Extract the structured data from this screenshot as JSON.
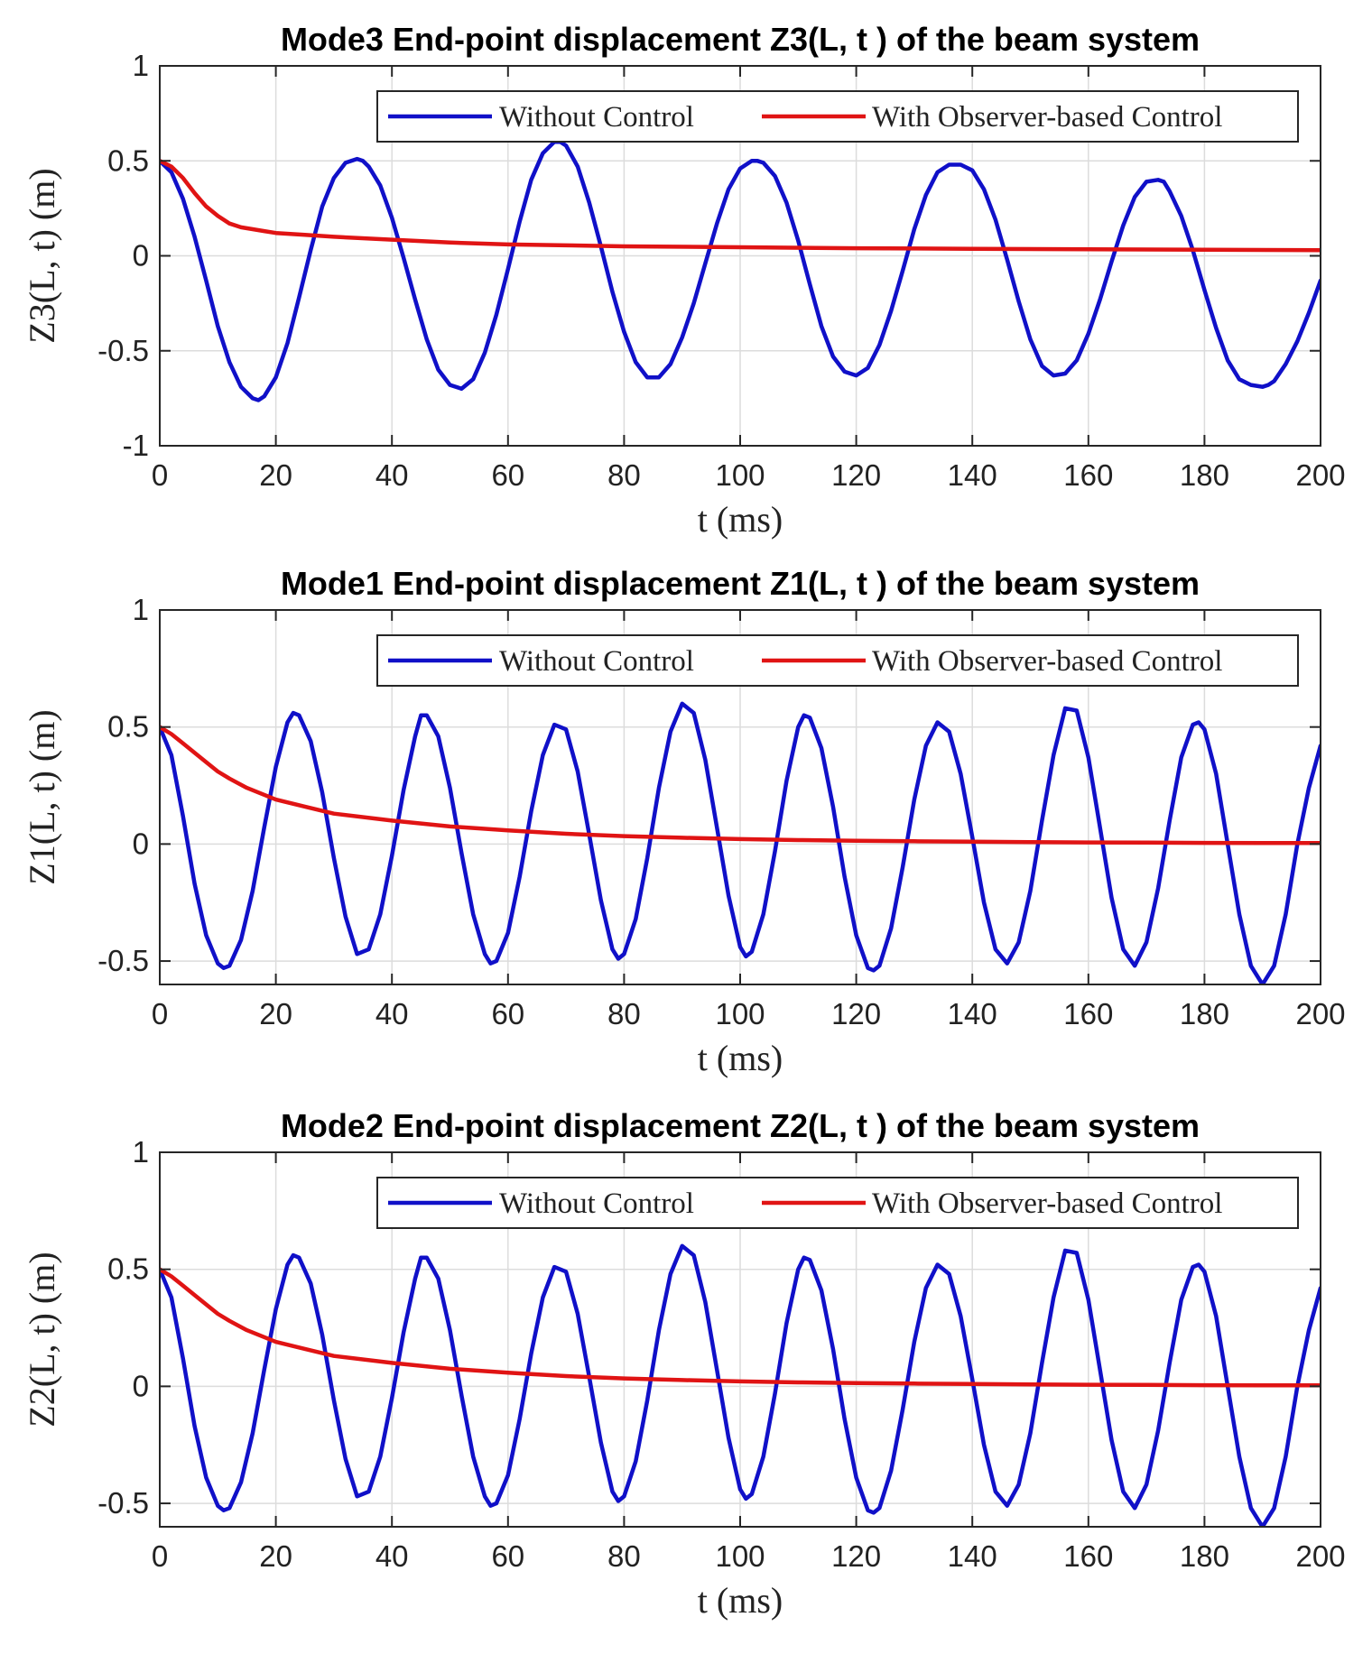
{
  "chart_data": [
    {
      "type": "line",
      "title": "Mode3 End-point displacement Z3(L, t ) of the beam system",
      "xlabel": "t (ms)",
      "ylabel": "Z3(L, t) (m)",
      "xlim": [
        0,
        200
      ],
      "ylim": [
        -1,
        1
      ],
      "xticks": [
        "0",
        "20",
        "40",
        "60",
        "80",
        "100",
        "120",
        "140",
        "160",
        "180",
        "200"
      ],
      "yticks": [
        "-1",
        "-0.5",
        "0",
        "0.5",
        "1"
      ],
      "grid": true,
      "legend_position": "top-right",
      "series": [
        {
          "name": "Without Control",
          "color": "#1010c8",
          "x": [
            0,
            2,
            4,
            6,
            8,
            10,
            12,
            14,
            16,
            17,
            18,
            20,
            22,
            24,
            26,
            28,
            30,
            32,
            34,
            35,
            36,
            38,
            40,
            42,
            44,
            46,
            48,
            50,
            52,
            54,
            56,
            58,
            60,
            62,
            64,
            66,
            68,
            69,
            70,
            72,
            74,
            76,
            78,
            80,
            82,
            84,
            86,
            88,
            90,
            92,
            94,
            96,
            98,
            100,
            102,
            103,
            104,
            106,
            108,
            110,
            112,
            114,
            116,
            118,
            120,
            122,
            124,
            126,
            128,
            130,
            132,
            134,
            136,
            138,
            140,
            142,
            144,
            146,
            148,
            150,
            152,
            154,
            156,
            158,
            160,
            162,
            164,
            166,
            168,
            170,
            172,
            173,
            174,
            176,
            178,
            180,
            182,
            184,
            186,
            188,
            190,
            191,
            192,
            194,
            196,
            198,
            200
          ],
          "y": [
            0.5,
            0.44,
            0.3,
            0.1,
            -0.13,
            -0.37,
            -0.56,
            -0.69,
            -0.75,
            -0.76,
            -0.74,
            -0.64,
            -0.46,
            -0.22,
            0.03,
            0.26,
            0.41,
            0.49,
            0.51,
            0.5,
            0.47,
            0.37,
            0.2,
            -0.01,
            -0.23,
            -0.44,
            -0.6,
            -0.68,
            -0.7,
            -0.65,
            -0.51,
            -0.31,
            -0.07,
            0.18,
            0.4,
            0.54,
            0.6,
            0.6,
            0.58,
            0.47,
            0.28,
            0.05,
            -0.19,
            -0.4,
            -0.56,
            -0.64,
            -0.64,
            -0.57,
            -0.43,
            -0.25,
            -0.04,
            0.17,
            0.35,
            0.46,
            0.5,
            0.5,
            0.49,
            0.42,
            0.28,
            0.08,
            -0.15,
            -0.37,
            -0.53,
            -0.61,
            -0.63,
            -0.59,
            -0.47,
            -0.29,
            -0.08,
            0.14,
            0.32,
            0.44,
            0.48,
            0.48,
            0.45,
            0.35,
            0.19,
            -0.02,
            -0.24,
            -0.44,
            -0.58,
            -0.63,
            -0.62,
            -0.55,
            -0.41,
            -0.23,
            -0.03,
            0.16,
            0.31,
            0.39,
            0.4,
            0.39,
            0.34,
            0.21,
            0.03,
            -0.18,
            -0.38,
            -0.55,
            -0.65,
            -0.68,
            -0.69,
            -0.68,
            -0.66,
            -0.57,
            -0.45,
            -0.3,
            -0.13
          ]
        },
        {
          "name": "With Observer-based Control",
          "color": "#e01414",
          "x": [
            0,
            2,
            4,
            6,
            8,
            10,
            12,
            14,
            16,
            18,
            20,
            25,
            30,
            40,
            50,
            60,
            70,
            80,
            100,
            120,
            140,
            160,
            180,
            200
          ],
          "y": [
            0.5,
            0.47,
            0.41,
            0.33,
            0.26,
            0.21,
            0.17,
            0.15,
            0.14,
            0.13,
            0.12,
            0.11,
            0.1,
            0.085,
            0.07,
            0.06,
            0.055,
            0.05,
            0.045,
            0.04,
            0.037,
            0.034,
            0.032,
            0.03
          ]
        }
      ]
    },
    {
      "type": "line",
      "title": "Mode1 End-point displacement Z1(L, t ) of the beam system",
      "xlabel": "t (ms)",
      "ylabel": "Z1(L, t) (m)",
      "xlim": [
        0,
        200
      ],
      "ylim": [
        -0.6,
        1
      ],
      "xticks": [
        "0",
        "20",
        "40",
        "60",
        "80",
        "100",
        "120",
        "140",
        "160",
        "180",
        "200"
      ],
      "yticks": [
        "-0.5",
        "0",
        "0.5",
        "1"
      ],
      "grid": true,
      "legend_position": "top-right",
      "series": [
        {
          "name": "Without Control",
          "color": "#1010c8",
          "x": [
            0,
            2,
            4,
            6,
            8,
            10,
            11,
            12,
            14,
            16,
            18,
            20,
            22,
            23,
            24,
            26,
            28,
            30,
            32,
            34,
            36,
            38,
            40,
            42,
            44,
            45,
            46,
            48,
            50,
            52,
            54,
            56,
            57,
            58,
            60,
            62,
            64,
            66,
            68,
            70,
            72,
            74,
            76,
            78,
            79,
            80,
            82,
            84,
            86,
            88,
            90,
            92,
            94,
            96,
            98,
            100,
            101,
            102,
            104,
            106,
            108,
            110,
            111,
            112,
            114,
            116,
            118,
            120,
            122,
            123,
            124,
            126,
            128,
            130,
            132,
            134,
            136,
            138,
            140,
            142,
            144,
            146,
            148,
            150,
            152,
            154,
            156,
            158,
            160,
            162,
            164,
            166,
            168,
            170,
            172,
            174,
            176,
            178,
            179,
            180,
            182,
            184,
            186,
            188,
            190,
            192,
            194,
            196,
            198,
            200
          ],
          "y": [
            0.5,
            0.38,
            0.12,
            -0.17,
            -0.39,
            -0.51,
            -0.53,
            -0.52,
            -0.41,
            -0.2,
            0.07,
            0.33,
            0.52,
            0.56,
            0.55,
            0.44,
            0.22,
            -0.06,
            -0.31,
            -0.47,
            -0.45,
            -0.3,
            -0.05,
            0.23,
            0.46,
            0.55,
            0.55,
            0.46,
            0.24,
            -0.04,
            -0.3,
            -0.47,
            -0.51,
            -0.5,
            -0.38,
            -0.14,
            0.14,
            0.38,
            0.51,
            0.49,
            0.31,
            0.04,
            -0.24,
            -0.45,
            -0.49,
            -0.47,
            -0.32,
            -0.06,
            0.24,
            0.48,
            0.6,
            0.56,
            0.36,
            0.07,
            -0.22,
            -0.44,
            -0.48,
            -0.46,
            -0.3,
            -0.03,
            0.27,
            0.5,
            0.55,
            0.54,
            0.41,
            0.16,
            -0.14,
            -0.39,
            -0.53,
            -0.54,
            -0.52,
            -0.36,
            -0.1,
            0.19,
            0.42,
            0.52,
            0.48,
            0.3,
            0.03,
            -0.25,
            -0.45,
            -0.51,
            -0.42,
            -0.2,
            0.1,
            0.38,
            0.58,
            0.57,
            0.37,
            0.07,
            -0.23,
            -0.45,
            -0.52,
            -0.42,
            -0.19,
            0.1,
            0.37,
            0.51,
            0.52,
            0.49,
            0.3,
            0.0,
            -0.3,
            -0.52,
            -0.6,
            -0.52,
            -0.3,
            0.0,
            0.24,
            0.42
          ]
        },
        {
          "name": "With Observer-based Control",
          "color": "#e01414",
          "x": [
            0,
            2,
            4,
            6,
            8,
            10,
            12,
            15,
            20,
            25,
            30,
            40,
            50,
            60,
            70,
            80,
            90,
            100,
            110,
            120,
            130,
            140,
            150,
            160,
            170,
            180,
            190,
            200
          ],
          "y": [
            0.5,
            0.47,
            0.43,
            0.39,
            0.35,
            0.31,
            0.28,
            0.24,
            0.19,
            0.16,
            0.13,
            0.1,
            0.075,
            0.058,
            0.044,
            0.034,
            0.027,
            0.021,
            0.017,
            0.014,
            0.012,
            0.01,
            0.008,
            0.007,
            0.006,
            0.005,
            0.004,
            0.004
          ]
        }
      ]
    },
    {
      "type": "line",
      "title": "Mode2 End-point displacement Z2(L, t ) of the beam system",
      "xlabel": "t (ms)",
      "ylabel": "Z2(L, t) (m)",
      "xlim": [
        0,
        200
      ],
      "ylim": [
        -0.6,
        1
      ],
      "xticks": [
        "0",
        "20",
        "40",
        "60",
        "80",
        "100",
        "120",
        "140",
        "160",
        "180",
        "200"
      ],
      "yticks": [
        "-0.5",
        "0",
        "0.5",
        "1"
      ],
      "grid": true,
      "legend_position": "top-right",
      "series": [
        {
          "name": "Without Control",
          "color": "#1010c8",
          "x": [
            0,
            2,
            4,
            6,
            8,
            10,
            11,
            12,
            14,
            16,
            18,
            20,
            22,
            23,
            24,
            26,
            28,
            30,
            32,
            34,
            36,
            38,
            40,
            42,
            44,
            45,
            46,
            48,
            50,
            52,
            54,
            56,
            57,
            58,
            60,
            62,
            64,
            66,
            68,
            70,
            72,
            74,
            76,
            78,
            79,
            80,
            82,
            84,
            86,
            88,
            90,
            92,
            94,
            96,
            98,
            100,
            101,
            102,
            104,
            106,
            108,
            110,
            111,
            112,
            114,
            116,
            118,
            120,
            122,
            123,
            124,
            126,
            128,
            130,
            132,
            134,
            136,
            138,
            140,
            142,
            144,
            146,
            148,
            150,
            152,
            154,
            156,
            158,
            160,
            162,
            164,
            166,
            168,
            170,
            172,
            174,
            176,
            178,
            179,
            180,
            182,
            184,
            186,
            188,
            190,
            192,
            194,
            196,
            198,
            200
          ],
          "y": [
            0.5,
            0.38,
            0.12,
            -0.17,
            -0.39,
            -0.51,
            -0.53,
            -0.52,
            -0.41,
            -0.2,
            0.07,
            0.33,
            0.52,
            0.56,
            0.55,
            0.44,
            0.22,
            -0.06,
            -0.31,
            -0.47,
            -0.45,
            -0.3,
            -0.05,
            0.23,
            0.46,
            0.55,
            0.55,
            0.46,
            0.24,
            -0.04,
            -0.3,
            -0.47,
            -0.51,
            -0.5,
            -0.38,
            -0.14,
            0.14,
            0.38,
            0.51,
            0.49,
            0.31,
            0.04,
            -0.24,
            -0.45,
            -0.49,
            -0.47,
            -0.32,
            -0.06,
            0.24,
            0.48,
            0.6,
            0.56,
            0.36,
            0.07,
            -0.22,
            -0.44,
            -0.48,
            -0.46,
            -0.3,
            -0.03,
            0.27,
            0.5,
            0.55,
            0.54,
            0.41,
            0.16,
            -0.14,
            -0.39,
            -0.53,
            -0.54,
            -0.52,
            -0.36,
            -0.1,
            0.19,
            0.42,
            0.52,
            0.48,
            0.3,
            0.03,
            -0.25,
            -0.45,
            -0.51,
            -0.42,
            -0.2,
            0.1,
            0.38,
            0.58,
            0.57,
            0.37,
            0.07,
            -0.23,
            -0.45,
            -0.52,
            -0.42,
            -0.19,
            0.1,
            0.37,
            0.51,
            0.52,
            0.49,
            0.3,
            0.0,
            -0.3,
            -0.52,
            -0.6,
            -0.52,
            -0.3,
            0.0,
            0.24,
            0.42
          ]
        },
        {
          "name": "With Observer-based Control",
          "color": "#e01414",
          "x": [
            0,
            2,
            4,
            6,
            8,
            10,
            12,
            15,
            20,
            25,
            30,
            40,
            50,
            60,
            70,
            80,
            90,
            100,
            110,
            120,
            130,
            140,
            150,
            160,
            170,
            180,
            190,
            200
          ],
          "y": [
            0.5,
            0.47,
            0.43,
            0.39,
            0.35,
            0.31,
            0.28,
            0.24,
            0.19,
            0.16,
            0.13,
            0.1,
            0.075,
            0.058,
            0.044,
            0.034,
            0.027,
            0.021,
            0.017,
            0.014,
            0.012,
            0.01,
            0.008,
            0.007,
            0.006,
            0.005,
            0.004,
            0.004
          ]
        }
      ]
    }
  ]
}
